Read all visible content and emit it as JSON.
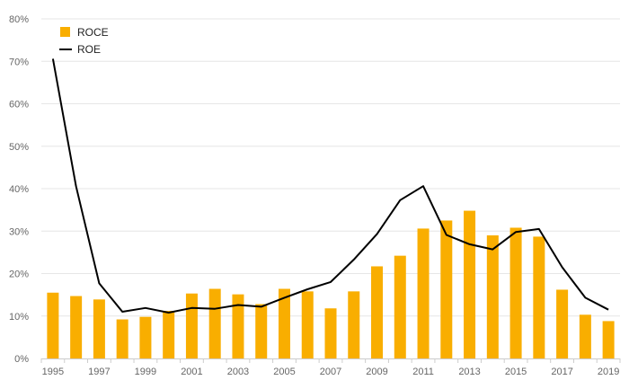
{
  "chart_data": {
    "type": "bar",
    "x": [
      "1995",
      "1996",
      "1997",
      "1998",
      "1999",
      "2000",
      "2001",
      "2002",
      "2003",
      "2004",
      "2005",
      "2006",
      "2007",
      "2008",
      "2009",
      "2010",
      "2011",
      "2012",
      "2013",
      "2014",
      "2015",
      "2016",
      "2017",
      "2018",
      "2019"
    ],
    "x_tick_labels": [
      "1995",
      "1997",
      "1999",
      "2001",
      "2003",
      "2005",
      "2007",
      "2009",
      "2011",
      "2013",
      "2015",
      "2017",
      "2019"
    ],
    "y_tick_labels": [
      "0%",
      "10%",
      "20%",
      "30%",
      "40%",
      "50%",
      "60%",
      "70%",
      "80%"
    ],
    "ylim": [
      0,
      80
    ],
    "grid": true,
    "legend_position": "top-left",
    "series": [
      {
        "name": "ROCE",
        "type": "bar",
        "color": "#F9AE00",
        "values": [
          15.5,
          14.7,
          13.9,
          9.2,
          9.8,
          11.2,
          15.3,
          16.4,
          15.1,
          12.8,
          16.4,
          15.8,
          11.8,
          15.8,
          21.7,
          24.2,
          30.6,
          32.5,
          34.8,
          29.0,
          30.8,
          28.7,
          16.2,
          10.3,
          8.8
        ]
      },
      {
        "name": "ROE",
        "type": "line",
        "color": "#000000",
        "values": [
          70.6,
          40.6,
          17.7,
          11.0,
          11.9,
          10.8,
          11.9,
          11.7,
          12.6,
          12.2,
          14.3,
          16.3,
          18.0,
          23.3,
          29.3,
          37.3,
          40.6,
          29.1,
          26.9,
          25.7,
          29.8,
          30.5,
          21.5,
          14.3,
          11.5
        ]
      }
    ]
  }
}
